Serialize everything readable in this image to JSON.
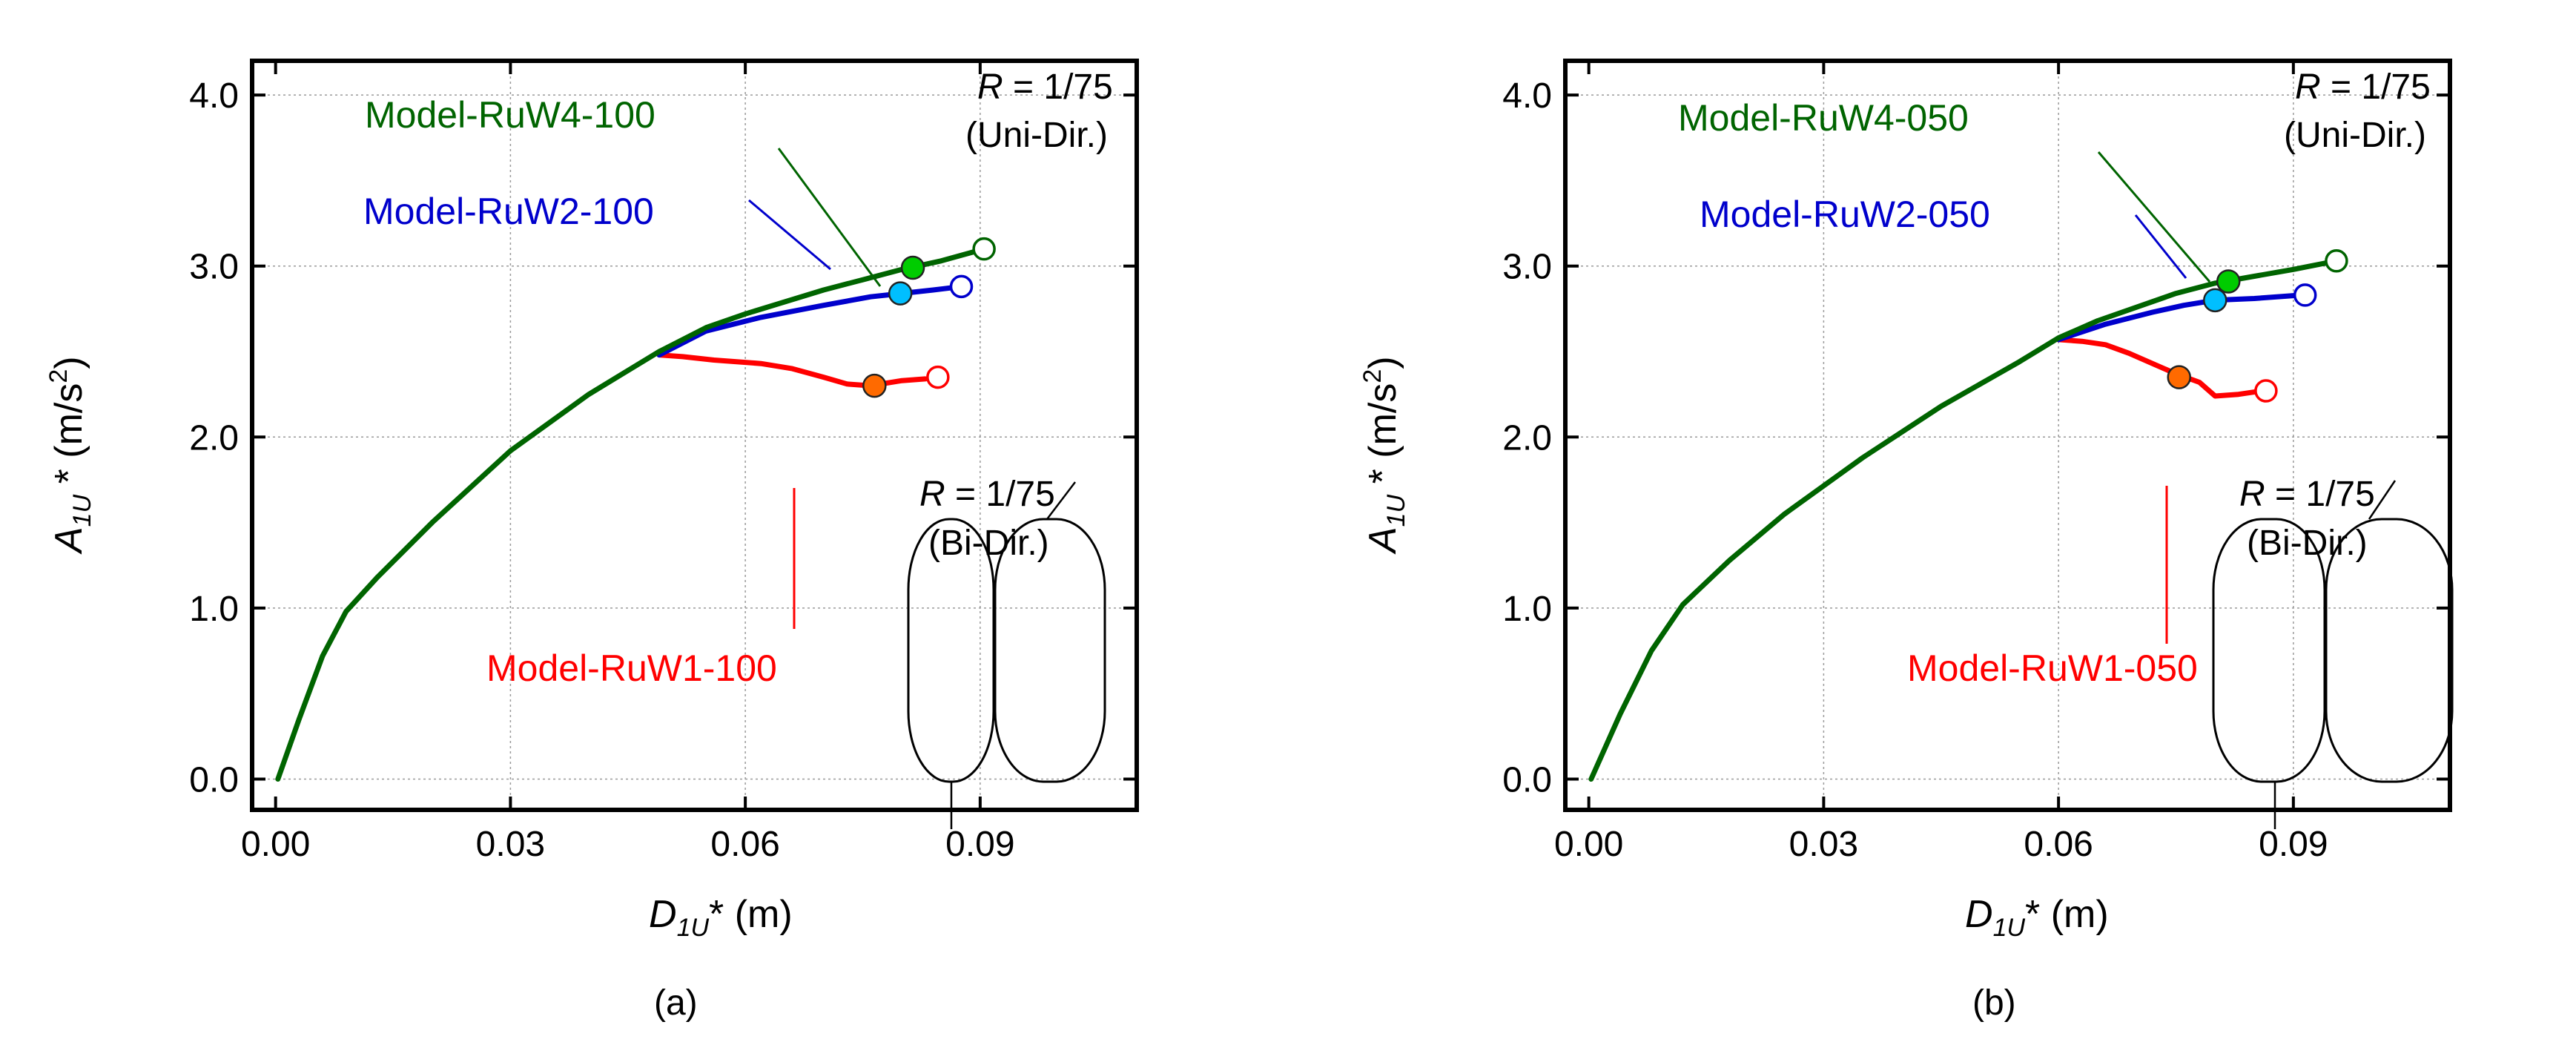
{
  "chart_data": [
    {
      "type": "line",
      "panel_label": "(a)",
      "xlabel": {
        "main": "D",
        "sub": "1U",
        "rest": "* (m)"
      },
      "ylabel": {
        "main": "A",
        "sub": "1U",
        "rest": " * (m/s",
        "sup": "2",
        "close": ")"
      },
      "xlim": [
        -0.003,
        0.11
      ],
      "ylim": [
        -0.18,
        4.2
      ],
      "xticks": [
        0.0,
        0.03,
        0.06,
        0.09
      ],
      "xtick_labels": [
        "0.00",
        "0.03",
        "0.06",
        "0.09"
      ],
      "yticks": [
        0.0,
        1.0,
        2.0,
        3.0,
        4.0
      ],
      "ytick_labels": [
        "0.0",
        "1.0",
        "2.0",
        "3.0",
        "4.0"
      ],
      "grid": true,
      "series": [
        {
          "name": "Model-RuW1-100",
          "color": "#ff0000",
          "x": [
            0.049,
            0.052,
            0.056,
            0.062,
            0.066,
            0.07,
            0.073,
            0.076,
            0.08,
            0.083
          ],
          "y": [
            2.48,
            2.47,
            2.45,
            2.43,
            2.4,
            2.35,
            2.31,
            2.3,
            2.33,
            2.34
          ],
          "marker_filled": [
            0.0765,
            2.3
          ],
          "marker_open": [
            0.0846,
            2.35
          ],
          "marker_filled_color": "#ff6a00"
        },
        {
          "name": "Model-RuW2-100",
          "color": "#0000cc",
          "x": [
            0.049,
            0.055,
            0.062,
            0.07,
            0.076,
            0.08,
            0.084,
            0.0876
          ],
          "y": [
            2.48,
            2.62,
            2.7,
            2.77,
            2.82,
            2.84,
            2.86,
            2.88
          ],
          "marker_filled": [
            0.0798,
            2.84
          ],
          "marker_open": [
            0.0876,
            2.88
          ],
          "marker_filled_color": "#00bfff"
        },
        {
          "name": "Model-RuW4-100",
          "color": "#006400",
          "x": [
            0.0003,
            0.003,
            0.006,
            0.009,
            0.013,
            0.02,
            0.03,
            0.04,
            0.049,
            0.055,
            0.06,
            0.065,
            0.07,
            0.075,
            0.08,
            0.085,
            0.0905
          ],
          "y": [
            0.0,
            0.35,
            0.72,
            0.98,
            1.18,
            1.5,
            1.92,
            2.25,
            2.5,
            2.64,
            2.72,
            2.79,
            2.86,
            2.92,
            2.98,
            3.03,
            3.1
          ],
          "marker_filled": [
            0.0814,
            2.99
          ],
          "marker_open": [
            0.0905,
            3.1
          ],
          "marker_filled_color": "#00cc00"
        }
      ],
      "annotations": {
        "uni": {
          "text_r": "R",
          "text_ratio": " = 1/75",
          "text_dir": "(Uni-Dir.)"
        },
        "bi": {
          "text_r": "R",
          "text_ratio": " = 1/75",
          "text_dir": "(Bi-Dir.)"
        }
      }
    },
    {
      "type": "line",
      "panel_label": "(b)",
      "xlabel": {
        "main": "D",
        "sub": "1U",
        "rest": "* (m)"
      },
      "ylabel": {
        "main": "A",
        "sub": "1U",
        "rest": " * (m/s",
        "sup": "2",
        "close": ")"
      },
      "xlim": [
        -0.003,
        0.11
      ],
      "ylim": [
        -0.18,
        4.2
      ],
      "xticks": [
        0.0,
        0.03,
        0.06,
        0.09
      ],
      "xtick_labels": [
        "0.00",
        "0.03",
        "0.06",
        "0.09"
      ],
      "yticks": [
        0.0,
        1.0,
        2.0,
        3.0,
        4.0
      ],
      "ytick_labels": [
        "0.0",
        "1.0",
        "2.0",
        "3.0",
        "4.0"
      ],
      "grid": true,
      "series": [
        {
          "name": "Model-RuW1-050",
          "color": "#ff0000",
          "x": [
            0.06,
            0.063,
            0.066,
            0.069,
            0.072,
            0.075,
            0.078,
            0.08,
            0.083,
            0.086
          ],
          "y": [
            2.57,
            2.56,
            2.54,
            2.49,
            2.43,
            2.37,
            2.32,
            2.24,
            2.25,
            2.27
          ],
          "marker_filled": [
            0.0754,
            2.35
          ],
          "marker_open": [
            0.0865,
            2.27
          ],
          "marker_filled_color": "#ff6a00"
        },
        {
          "name": "Model-RuW2-050",
          "color": "#0000cc",
          "x": [
            0.06,
            0.066,
            0.072,
            0.076,
            0.08,
            0.085,
            0.091
          ],
          "y": [
            2.57,
            2.66,
            2.73,
            2.77,
            2.8,
            2.81,
            2.83
          ],
          "marker_filled": [
            0.08,
            2.8
          ],
          "marker_open": [
            0.0915,
            2.83
          ],
          "marker_filled_color": "#00bfff"
        },
        {
          "name": "Model-RuW4-050",
          "color": "#006400",
          "x": [
            0.0003,
            0.004,
            0.008,
            0.012,
            0.018,
            0.025,
            0.035,
            0.045,
            0.055,
            0.06,
            0.065,
            0.07,
            0.075,
            0.08,
            0.085,
            0.09,
            0.0955
          ],
          "y": [
            0.0,
            0.38,
            0.75,
            1.02,
            1.28,
            1.55,
            1.88,
            2.18,
            2.44,
            2.58,
            2.68,
            2.76,
            2.84,
            2.9,
            2.94,
            2.98,
            3.03
          ],
          "marker_filled": [
            0.0817,
            2.91
          ],
          "marker_open": [
            0.0955,
            3.03
          ],
          "marker_filled_color": "#00cc00"
        }
      ],
      "annotations": {
        "uni": {
          "text_r": "R",
          "text_ratio": " = 1/75",
          "text_dir": "(Uni-Dir.)"
        },
        "bi": {
          "text_r": "R",
          "text_ratio": " = 1/75",
          "text_dir": "(Bi-Dir.)"
        }
      }
    }
  ]
}
